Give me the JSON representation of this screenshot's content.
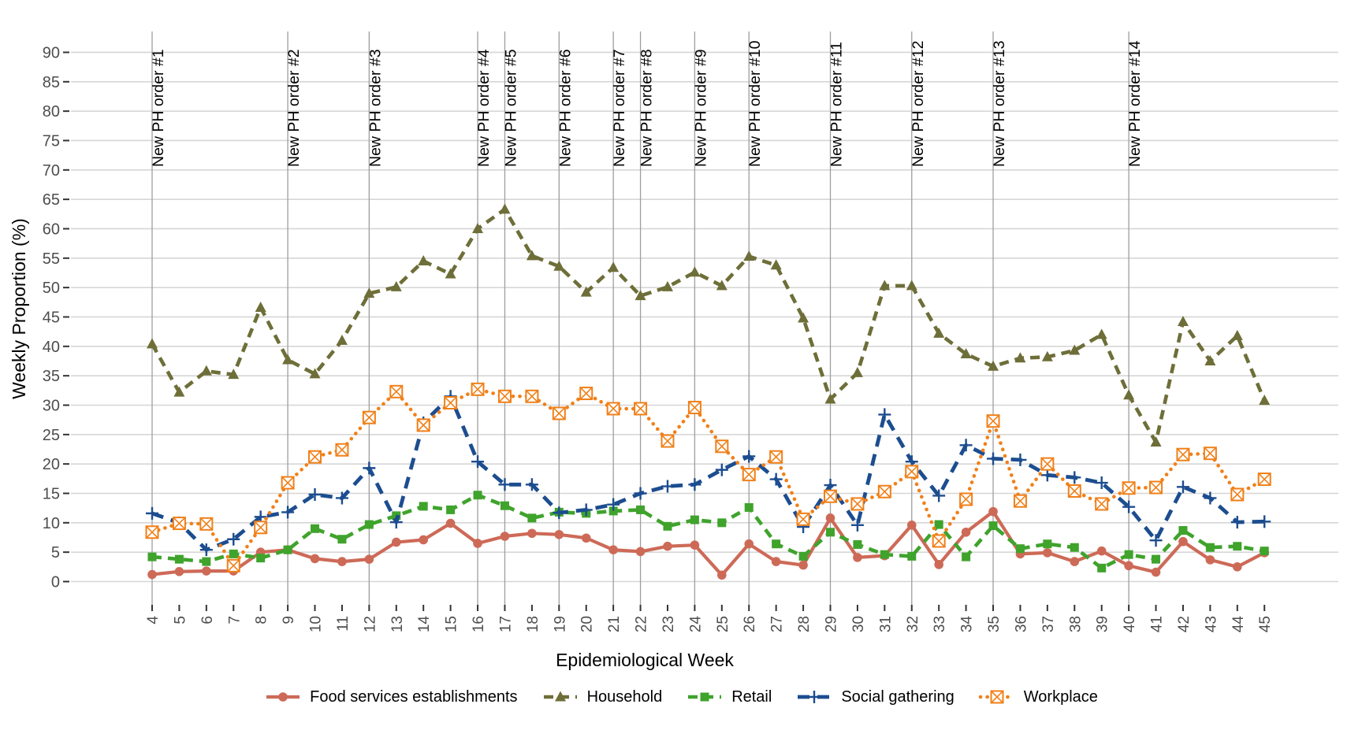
{
  "figure": {
    "y_axis_title": "Weekly Proportion (%)",
    "x_axis_title": "Epidemiological Week"
  },
  "chart_data": {
    "type": "line",
    "x": [
      4,
      5,
      6,
      7,
      8,
      9,
      10,
      11,
      12,
      13,
      14,
      15,
      16,
      17,
      18,
      19,
      20,
      21,
      22,
      23,
      24,
      25,
      26,
      27,
      28,
      29,
      30,
      31,
      32,
      33,
      34,
      35,
      36,
      37,
      38,
      39,
      40,
      41,
      42,
      43,
      44,
      45
    ],
    "xlabel": "Epidemiological Week",
    "ylabel": "Weekly Proportion (%)",
    "ylim": [
      0,
      93
    ],
    "y_ticks": [
      0,
      5,
      10,
      15,
      20,
      25,
      30,
      35,
      40,
      45,
      50,
      55,
      60,
      65,
      70,
      75,
      80,
      85,
      90
    ],
    "grid": "horizontal",
    "legend_position": "bottom",
    "series": [
      {
        "name": "Food services establishments",
        "color": "#cd6a57",
        "marker": "circle",
        "line": "solid",
        "values": [
          1.2,
          1.7,
          1.8,
          1.8,
          5.0,
          5.4,
          3.9,
          3.4,
          3.8,
          6.7,
          7.1,
          9.9,
          6.5,
          7.7,
          8.2,
          8.0,
          7.4,
          5.4,
          5.1,
          6.0,
          6.2,
          1.1,
          6.4,
          3.4,
          2.8,
          10.8,
          4.1,
          4.4,
          9.6,
          2.9,
          8.4,
          11.9,
          4.7,
          4.9,
          3.4,
          5.2,
          2.7,
          1.6,
          6.8,
          3.7,
          2.5,
          4.9
        ]
      },
      {
        "name": "Household",
        "color": "#6e6e39",
        "marker": "triangle",
        "line": "dashed",
        "values": [
          40.4,
          32.2,
          35.8,
          35.2,
          46.6,
          37.7,
          35.3,
          41.0,
          49.0,
          50.1,
          54.5,
          52.3,
          60.0,
          63.3,
          55.4,
          53.6,
          49.2,
          53.4,
          48.6,
          50.1,
          52.6,
          50.3,
          55.3,
          53.8,
          44.8,
          31.0,
          35.5,
          50.3,
          50.3,
          42.2,
          38.7,
          36.6,
          38.0,
          38.2,
          39.3,
          42.0,
          31.7,
          23.7,
          44.2,
          37.5,
          41.8,
          30.8
        ]
      },
      {
        "name": "Retail",
        "color": "#3fa32c",
        "marker": "square",
        "line": "dashed",
        "values": [
          4.2,
          3.8,
          3.4,
          4.7,
          4.0,
          5.4,
          9.0,
          7.2,
          9.7,
          11.2,
          12.8,
          12.2,
          14.7,
          12.9,
          10.8,
          11.8,
          11.6,
          12.0,
          12.2,
          9.4,
          10.5,
          10.0,
          12.6,
          6.4,
          4.3,
          8.4,
          6.3,
          4.6,
          4.3,
          9.7,
          4.2,
          9.5,
          5.6,
          6.4,
          5.8,
          2.3,
          4.6,
          3.8,
          8.7,
          5.8,
          6.0,
          5.2
        ]
      },
      {
        "name": "Social gathering",
        "color": "#1c4d8f",
        "marker": "plus",
        "line": "longdash",
        "values": [
          11.6,
          10.0,
          5.4,
          7.2,
          11.0,
          11.8,
          14.8,
          14.2,
          19.3,
          10.1,
          27.0,
          31.5,
          20.4,
          16.5,
          16.5,
          11.7,
          12.2,
          13.1,
          15.0,
          16.2,
          16.5,
          19.0,
          21.3,
          17.4,
          9.3,
          16.4,
          9.6,
          28.4,
          20.4,
          14.6,
          23.2,
          20.9,
          20.7,
          18.1,
          17.7,
          16.8,
          12.7,
          7.0,
          16.1,
          14.2,
          10.1,
          10.2
        ]
      },
      {
        "name": "Workplace",
        "color": "#f08019",
        "marker": "crossed-square",
        "line": "dotted",
        "values": [
          8.4,
          9.9,
          9.8,
          2.7,
          9.2,
          16.8,
          21.2,
          22.4,
          27.9,
          32.3,
          26.6,
          30.4,
          32.7,
          31.5,
          31.5,
          28.6,
          32.0,
          29.4,
          29.4,
          23.9,
          29.6,
          23.0,
          18.2,
          21.2,
          10.6,
          14.5,
          13.2,
          15.3,
          18.7,
          6.9,
          14.0,
          27.3,
          13.7,
          20.0,
          15.4,
          13.2,
          15.9,
          16.0,
          21.6,
          21.8,
          14.8,
          17.4
        ]
      }
    ],
    "annotations": [
      {
        "label": "New PH order #1",
        "week": 4
      },
      {
        "label": "New PH order #2",
        "week": 9
      },
      {
        "label": "New PH order #3",
        "week": 12
      },
      {
        "label": "New PH order #4",
        "week": 16
      },
      {
        "label": "New PH order #5",
        "week": 17
      },
      {
        "label": "New PH order #6",
        "week": 19
      },
      {
        "label": "New PH order #7",
        "week": 21
      },
      {
        "label": "New PH order #8",
        "week": 22
      },
      {
        "label": "New PH order #9",
        "week": 24
      },
      {
        "label": "New PH order #10",
        "week": 26
      },
      {
        "label": "New PH order #11",
        "week": 29
      },
      {
        "label": "New PH order #12",
        "week": 32
      },
      {
        "label": "New PH order #13",
        "week": 35
      },
      {
        "label": "New PH order #14",
        "week": 40
      }
    ]
  }
}
